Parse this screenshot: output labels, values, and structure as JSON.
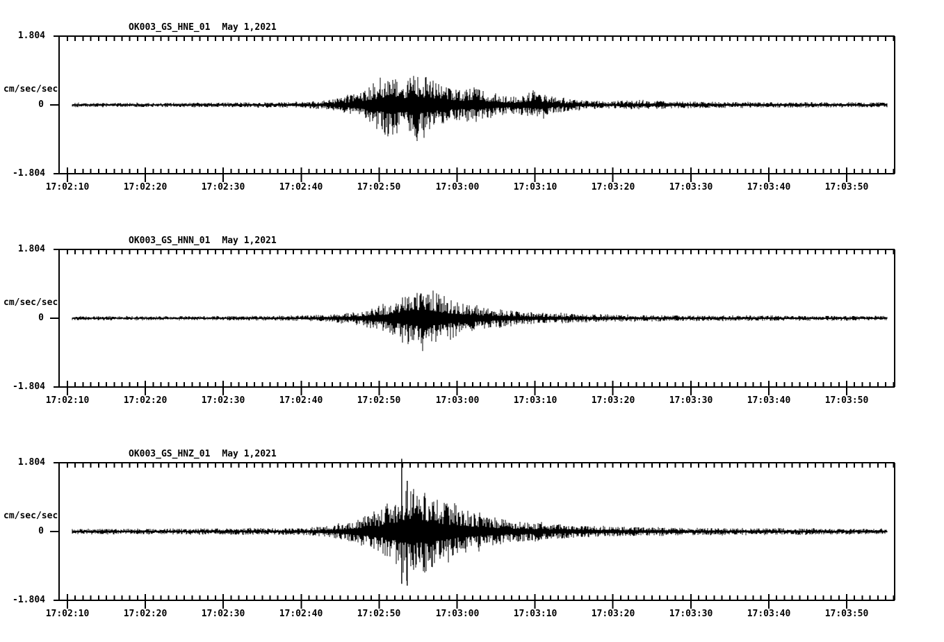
{
  "figure": {
    "background": "#ffffff",
    "trace_color": "#000000",
    "axis_color": "#000000"
  },
  "chart_data": [
    {
      "type": "line",
      "subtype": "seismogram",
      "station": "OK003_GS_HNE_01",
      "date": "May 1,2021",
      "ylabel": "cm/sec/sec",
      "y_ticks": [
        "1.804",
        "0",
        "-1.804"
      ],
      "ylim": [
        -1.804,
        1.804
      ],
      "x_tick_labels": [
        "17:02:10",
        "17:02:20",
        "17:02:30",
        "17:02:40",
        "17:02:50",
        "17:03:00",
        "17:03:10",
        "17:03:20",
        "17:03:30",
        "17:03:40",
        "17:03:50"
      ],
      "x_tick_interval_sec": 10,
      "x_minor_tick_sec": 1,
      "seed": 101,
      "envelope": [
        [
          -0.5,
          0.055
        ],
        [
          10,
          0.055
        ],
        [
          20,
          0.06
        ],
        [
          28,
          0.07
        ],
        [
          31,
          0.09
        ],
        [
          33,
          0.11
        ],
        [
          35,
          0.18
        ],
        [
          36.5,
          0.27
        ],
        [
          38,
          0.4
        ],
        [
          39.5,
          0.54
        ],
        [
          41,
          0.81
        ],
        [
          41.6,
          0.9
        ],
        [
          42.5,
          0.76
        ],
        [
          43.5,
          0.68
        ],
        [
          44.6,
          0.85
        ],
        [
          45.5,
          0.79
        ],
        [
          46.5,
          0.72
        ],
        [
          47.5,
          0.58
        ],
        [
          48.5,
          0.47
        ],
        [
          50,
          0.4
        ],
        [
          51.5,
          0.43
        ],
        [
          53,
          0.4
        ],
        [
          54.5,
          0.32
        ],
        [
          56,
          0.25
        ],
        [
          57.5,
          0.22
        ],
        [
          59,
          0.31
        ],
        [
          60.3,
          0.36
        ],
        [
          61.5,
          0.29
        ],
        [
          63,
          0.18
        ],
        [
          65,
          0.14
        ],
        [
          67,
          0.11
        ],
        [
          70,
          0.09
        ],
        [
          73,
          0.12
        ],
        [
          75,
          0.11
        ],
        [
          78,
          0.09
        ],
        [
          82,
          0.08
        ],
        [
          90,
          0.07
        ],
        [
          100,
          0.065
        ],
        [
          106,
          0.06
        ]
      ],
      "spikes": []
    },
    {
      "type": "line",
      "subtype": "seismogram",
      "station": "OK003_GS_HNN_01",
      "date": "May 1,2021",
      "ylabel": "cm/sec/sec",
      "y_ticks": [
        "1.804",
        "0",
        "-1.804"
      ],
      "ylim": [
        -1.804,
        1.804
      ],
      "x_tick_labels": [
        "17:02:10",
        "17:02:20",
        "17:02:30",
        "17:02:40",
        "17:02:50",
        "17:03:00",
        "17:03:10",
        "17:03:20",
        "17:03:30",
        "17:03:40",
        "17:03:50"
      ],
      "x_tick_interval_sec": 10,
      "x_minor_tick_sec": 1,
      "seed": 202,
      "envelope": [
        [
          -0.5,
          0.05
        ],
        [
          15,
          0.05
        ],
        [
          25,
          0.06
        ],
        [
          30,
          0.07
        ],
        [
          33,
          0.09
        ],
        [
          35,
          0.12
        ],
        [
          37,
          0.17
        ],
        [
          39,
          0.25
        ],
        [
          41,
          0.36
        ],
        [
          42.5,
          0.5
        ],
        [
          44,
          0.68
        ],
        [
          45,
          0.81
        ],
        [
          45.8,
          0.9
        ],
        [
          46.6,
          0.76
        ],
        [
          47.5,
          0.68
        ],
        [
          48.5,
          0.54
        ],
        [
          50,
          0.43
        ],
        [
          51.5,
          0.36
        ],
        [
          53,
          0.29
        ],
        [
          55,
          0.23
        ],
        [
          57,
          0.2
        ],
        [
          59,
          0.16
        ],
        [
          61,
          0.14
        ],
        [
          63,
          0.13
        ],
        [
          66,
          0.11
        ],
        [
          70,
          0.09
        ],
        [
          75,
          0.08
        ],
        [
          80,
          0.07
        ],
        [
          90,
          0.065
        ],
        [
          100,
          0.06
        ],
        [
          106,
          0.06
        ]
      ],
      "spikes": []
    },
    {
      "type": "line",
      "subtype": "seismogram",
      "station": "OK003_GS_HNZ_01",
      "date": "May 1,2021",
      "ylabel": "cm/sec/sec",
      "y_ticks": [
        "1.804",
        "0",
        "-1.804"
      ],
      "ylim": [
        -1.804,
        1.804
      ],
      "x_tick_labels": [
        "17:02:10",
        "17:02:20",
        "17:02:30",
        "17:02:40",
        "17:02:50",
        "17:03:00",
        "17:03:10",
        "17:03:20",
        "17:03:30",
        "17:03:40",
        "17:03:50"
      ],
      "x_tick_interval_sec": 10,
      "x_minor_tick_sec": 1,
      "seed": 303,
      "envelope": [
        [
          -0.5,
          0.07
        ],
        [
          10,
          0.07
        ],
        [
          20,
          0.08
        ],
        [
          28,
          0.09
        ],
        [
          31,
          0.1
        ],
        [
          33,
          0.13
        ],
        [
          35,
          0.2
        ],
        [
          37,
          0.3
        ],
        [
          39,
          0.45
        ],
        [
          40.5,
          0.6
        ],
        [
          41.5,
          0.85
        ],
        [
          42.9,
          1.0
        ],
        [
          43.7,
          1.25
        ],
        [
          44.5,
          1.05
        ],
        [
          45.5,
          1.15
        ],
        [
          46.5,
          0.95
        ],
        [
          47.5,
          0.85
        ],
        [
          49,
          0.7
        ],
        [
          50.5,
          0.6
        ],
        [
          52,
          0.5
        ],
        [
          54,
          0.4
        ],
        [
          56,
          0.32
        ],
        [
          58,
          0.27
        ],
        [
          60,
          0.23
        ],
        [
          62,
          0.2
        ],
        [
          64,
          0.18
        ],
        [
          67,
          0.14
        ],
        [
          70,
          0.125
        ],
        [
          74,
          0.11
        ],
        [
          78,
          0.1
        ],
        [
          85,
          0.09
        ],
        [
          95,
          0.08
        ],
        [
          106,
          0.07
        ]
      ],
      "spikes": [
        {
          "t": 42.9,
          "up": 1.91,
          "down": -1.37
        },
        {
          "t": 43.6,
          "up": 1.33,
          "down": -1.42
        }
      ]
    }
  ]
}
